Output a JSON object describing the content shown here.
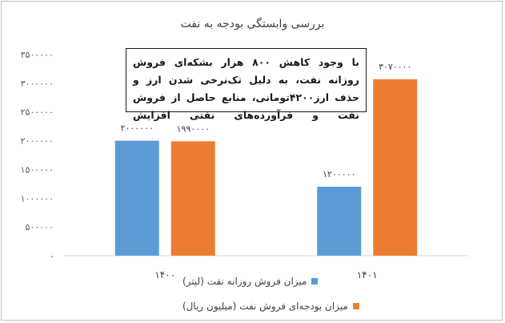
{
  "chart_data": {
    "type": "bar",
    "title": "بررسی وابستگی بودجه به نفت",
    "categories": [
      "۱۴۰۰",
      "۱۴۰۱"
    ],
    "series": [
      {
        "name": "میزان فروش روزانه نفت (لیتر)",
        "color": "#5b9bd5",
        "values": [
          2000000,
          1200000
        ],
        "labels": [
          "۲۰۰۰۰۰۰",
          "۱۲۰۰۰۰۰"
        ]
      },
      {
        "name": "میزان بودجه‌ای فروش نفت (میلیون ریال)",
        "color": "#ed7d31",
        "values": [
          1990000,
          3070000
        ],
        "labels": [
          "۱۹۹۰۰۰۰",
          "۳۰۷۰۰۰۰"
        ]
      }
    ],
    "y_ticks": [
      0,
      500000,
      1000000,
      1500000,
      2000000,
      2500000,
      3000000,
      3500000
    ],
    "y_tick_labels": [
      "-",
      "۵۰۰۰۰۰",
      "۱۰۰۰۰۰۰",
      "۱۵۰۰۰۰۰",
      "۲۰۰۰۰۰۰",
      "۲۵۰۰۰۰۰",
      "۳۰۰۰۰۰۰",
      "۳۵۰۰۰۰۰"
    ],
    "ylim": [
      0,
      3500000
    ],
    "grid": false,
    "legend_position": "bottom",
    "annotation": "با وجود کاهش ۸۰۰ هزار بشکه‌ای فروش روزانه نفت، به دلیل تک‌نرخی شدن ارز و حذف ارز۴۲۰۰تومانی، منابع حاصل از فروش نفت و فرآورده‌های نفتی افزایش"
  }
}
